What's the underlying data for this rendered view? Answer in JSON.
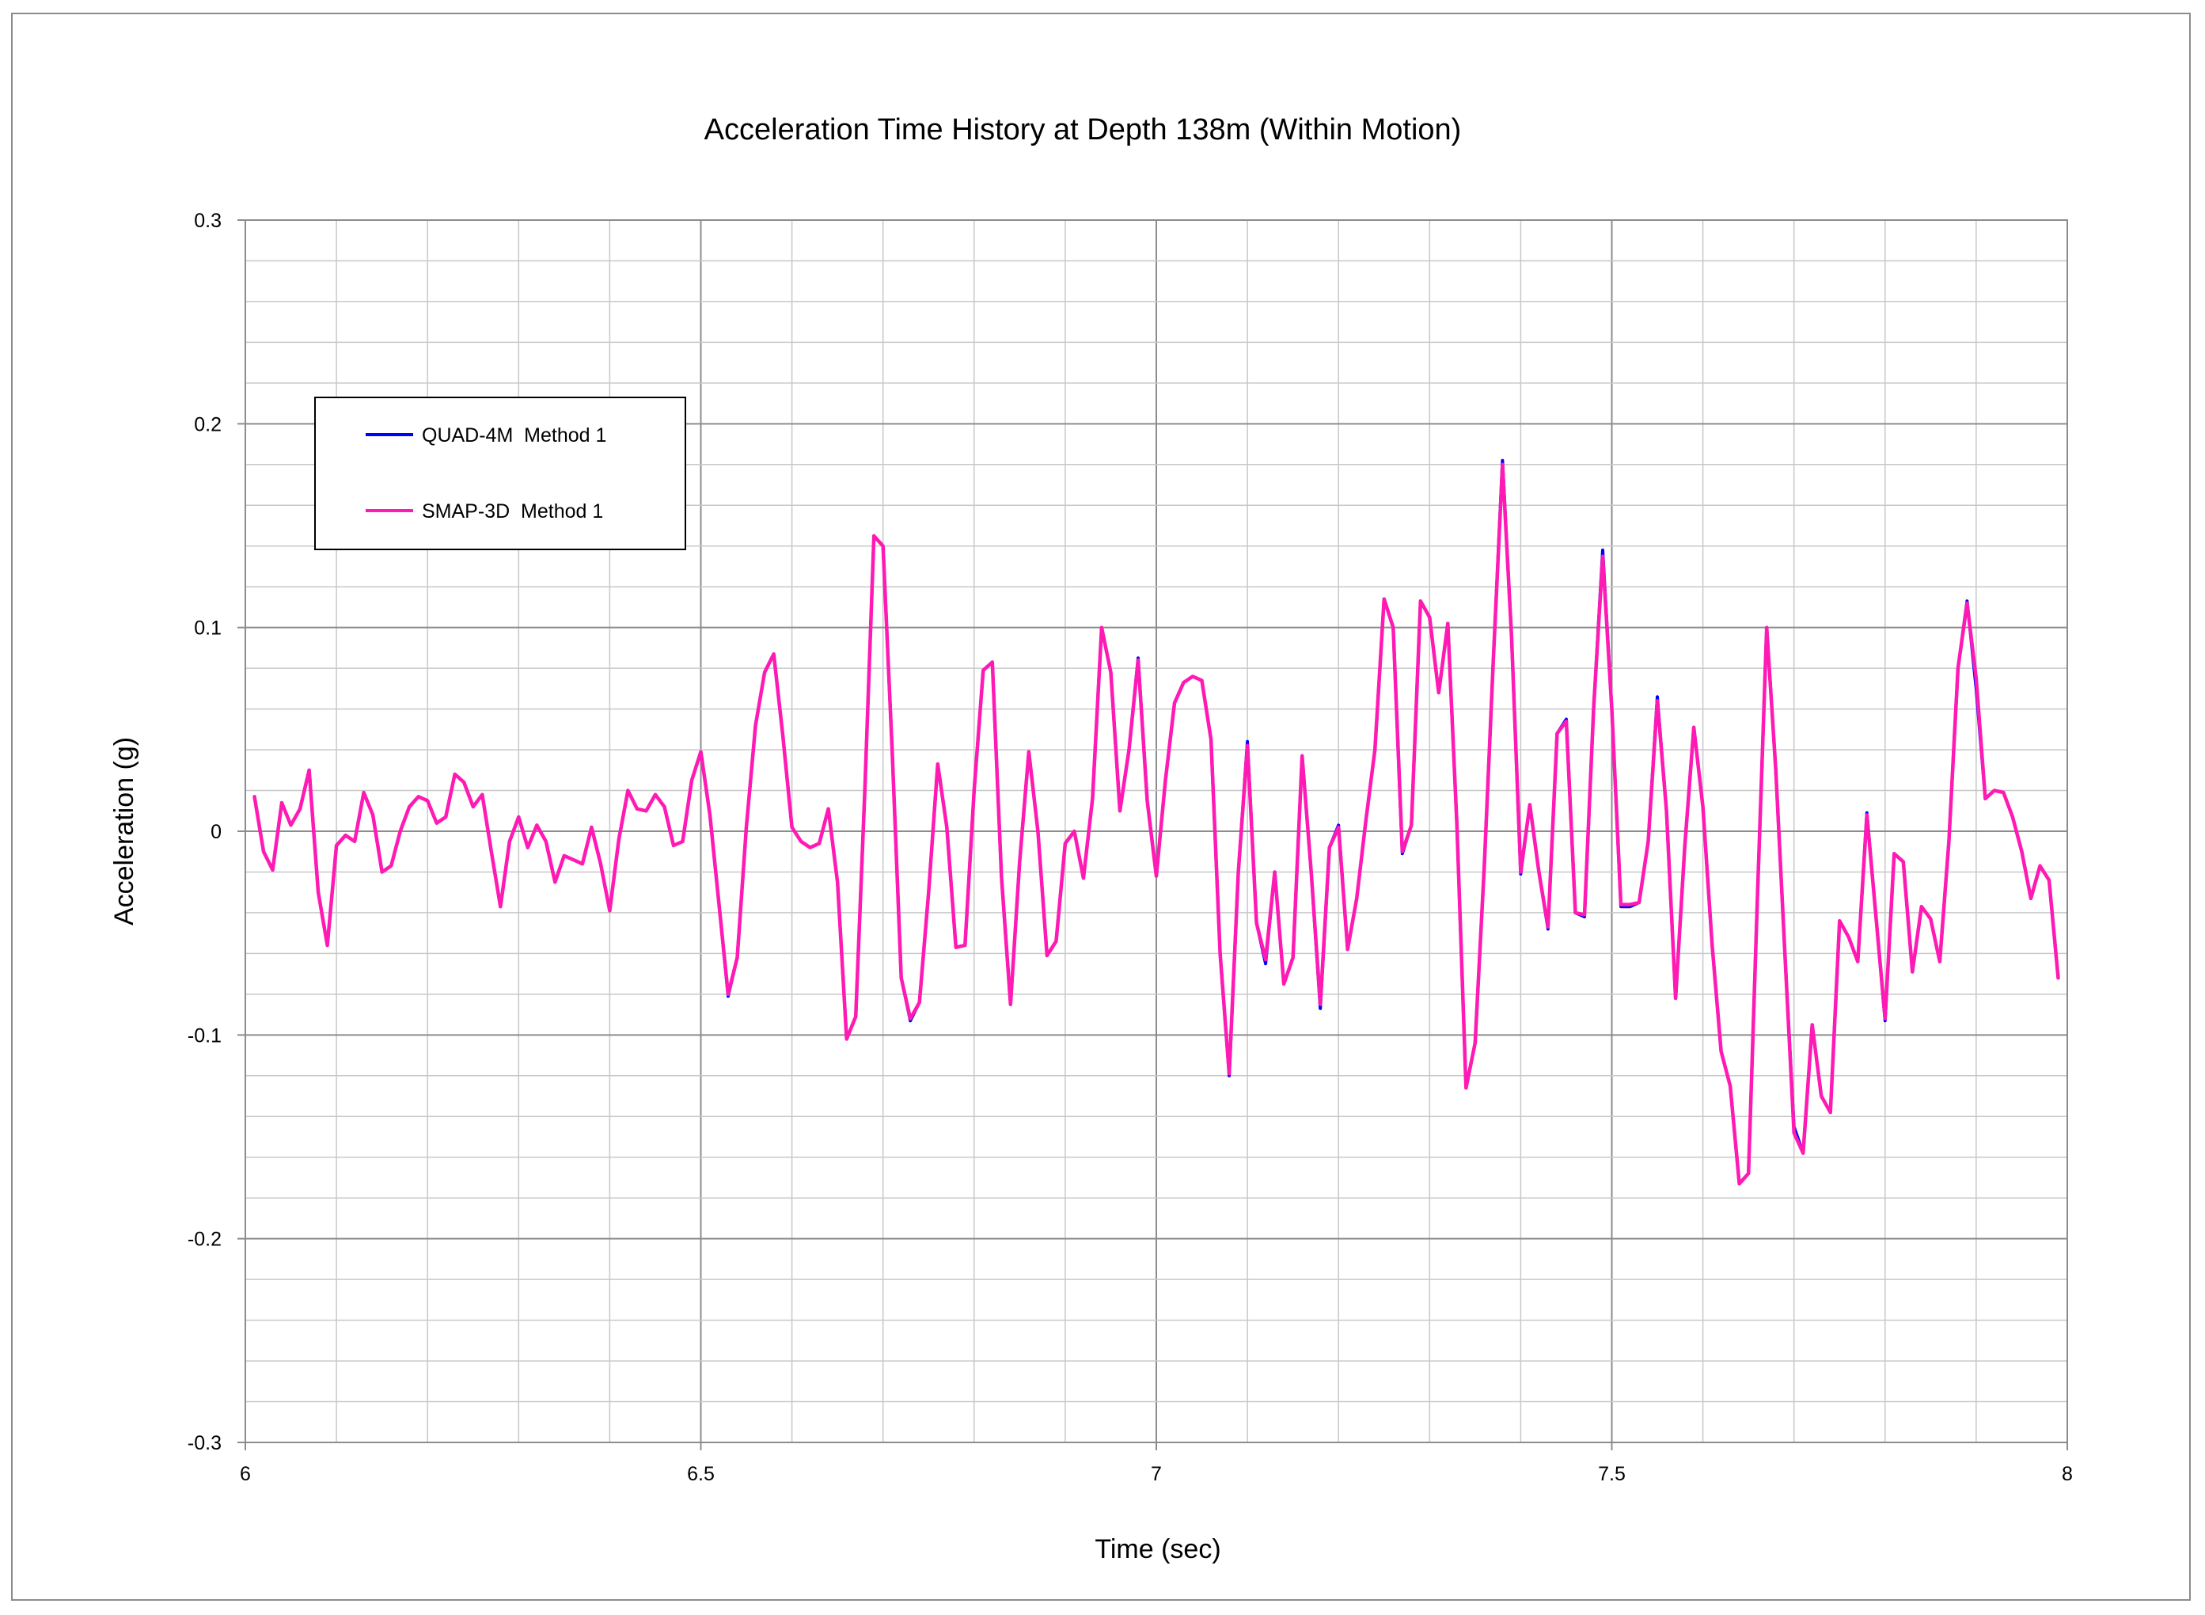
{
  "chart_data": {
    "type": "line",
    "title": "Acceleration Time History  at Depth 138m (Within Motion)",
    "xlabel": "Time (sec)",
    "ylabel": "Acceleration (g)",
    "xlim": [
      6,
      8
    ],
    "ylim": [
      -0.3,
      0.3
    ],
    "xticks": [
      6,
      6.5,
      7,
      7.5,
      8
    ],
    "xtick_labels": [
      "6",
      "6.5",
      "7",
      "7.5",
      "8"
    ],
    "yticks": [
      -0.3,
      -0.2,
      -0.1,
      0,
      0.1,
      0.2,
      0.3
    ],
    "ytick_labels": [
      "-0.3",
      "-0.2",
      "-0.1",
      "0",
      "0.1",
      "0.2",
      "0.3"
    ],
    "grid": true,
    "legend_position": "upper-left",
    "x": [
      6.01,
      6.02,
      6.03,
      6.04,
      6.05,
      6.06,
      6.07,
      6.08,
      6.09,
      6.1,
      6.11,
      6.12,
      6.13,
      6.14,
      6.15,
      6.16,
      6.17,
      6.18,
      6.19,
      6.2,
      6.21,
      6.22,
      6.23,
      6.24,
      6.25,
      6.26,
      6.27,
      6.28,
      6.29,
      6.3,
      6.31,
      6.32,
      6.33,
      6.34,
      6.35,
      6.36,
      6.37,
      6.38,
      6.39,
      6.4,
      6.41,
      6.42,
      6.43,
      6.44,
      6.45,
      6.46,
      6.47,
      6.48,
      6.49,
      6.5,
      6.51,
      6.52,
      6.53,
      6.54,
      6.55,
      6.56,
      6.57,
      6.58,
      6.59,
      6.6,
      6.61,
      6.62,
      6.63,
      6.64,
      6.65,
      6.66,
      6.67,
      6.68,
      6.69,
      6.7,
      6.71,
      6.72,
      6.73,
      6.74,
      6.75,
      6.76,
      6.77,
      6.78,
      6.79,
      6.8,
      6.81,
      6.82,
      6.83,
      6.84,
      6.85,
      6.86,
      6.87,
      6.88,
      6.89,
      6.9,
      6.91,
      6.92,
      6.93,
      6.94,
      6.95,
      6.96,
      6.97,
      6.98,
      6.99,
      7,
      7.01,
      7.02,
      7.03,
      7.04,
      7.05,
      7.06,
      7.07,
      7.08,
      7.09,
      7.1,
      7.11,
      7.12,
      7.13,
      7.14,
      7.15,
      7.16,
      7.17,
      7.18,
      7.19,
      7.2,
      7.21,
      7.22,
      7.23,
      7.24,
      7.25,
      7.26,
      7.27,
      7.28,
      7.29,
      7.3,
      7.31,
      7.32,
      7.33,
      7.34,
      7.35,
      7.36,
      7.37,
      7.38,
      7.39,
      7.4,
      7.41,
      7.42,
      7.43,
      7.44,
      7.45,
      7.46,
      7.47,
      7.48,
      7.49,
      7.5,
      7.51,
      7.52,
      7.53,
      7.54,
      7.55,
      7.56,
      7.57,
      7.58,
      7.59,
      7.6,
      7.61,
      7.62,
      7.63,
      7.64,
      7.65,
      7.66,
      7.67,
      7.68,
      7.69,
      7.7,
      7.71,
      7.72,
      7.73,
      7.74,
      7.75,
      7.76,
      7.77,
      7.78,
      7.79,
      7.8,
      7.81,
      7.82,
      7.83,
      7.84,
      7.85,
      7.86,
      7.87,
      7.88,
      7.89,
      7.9,
      7.91,
      7.92,
      7.93,
      7.94,
      7.95,
      7.96,
      7.97,
      7.98,
      7.99
    ],
    "series": [
      {
        "name": "QUAD-4M  Method 1",
        "color": "#0000ff",
        "values": [
          0.017,
          -0.01,
          -0.019,
          0.014,
          0.003,
          0.011,
          0.03,
          -0.03,
          -0.056,
          -0.007,
          -0.002,
          -0.005,
          0.019,
          0.008,
          -0.02,
          -0.017,
          0,
          0.012,
          0.017,
          0.015,
          0.004,
          0.007,
          0.028,
          0.024,
          0.012,
          0.018,
          -0.01,
          -0.037,
          -0.005,
          0.007,
          -0.008,
          0.003,
          -0.005,
          -0.025,
          -0.012,
          -0.014,
          -0.016,
          0.002,
          -0.016,
          -0.039,
          -0.004,
          0.02,
          0.011,
          0.01,
          0.018,
          0.012,
          -0.007,
          -0.005,
          0.025,
          0.039,
          0.008,
          -0.036,
          -0.081,
          -0.062,
          0.002,
          0.052,
          0.078,
          0.087,
          0.047,
          0.002,
          -0.005,
          -0.008,
          -0.006,
          0.011,
          -0.025,
          -0.102,
          -0.091,
          0.02,
          0.145,
          0.14,
          0.04,
          -0.072,
          -0.093,
          -0.084,
          -0.03,
          0.033,
          0.002,
          -0.057,
          -0.056,
          0.02,
          0.079,
          0.083,
          -0.022,
          -0.085,
          -0.015,
          0.039,
          0,
          -0.061,
          -0.054,
          -0.006,
          0,
          -0.023,
          0.016,
          0.1,
          0.078,
          0.01,
          0.04,
          0.085,
          0.015,
          -0.022,
          0.025,
          0.063,
          0.073,
          0.076,
          0.074,
          0.045,
          -0.06,
          -0.12,
          -0.02,
          0.044,
          -0.045,
          -0.065,
          -0.02,
          -0.075,
          -0.062,
          0.037,
          -0.02,
          -0.087,
          -0.008,
          0.003,
          -0.058,
          -0.033,
          0.005,
          0.04,
          0.114,
          0.1,
          -0.011,
          0.003,
          0.113,
          0.105,
          0.068,
          0.102,
          0.003,
          -0.126,
          -0.104,
          -0.017,
          0.085,
          0.182,
          0.095,
          -0.021,
          0.013,
          -0.02,
          -0.048,
          0.048,
          0.055,
          -0.04,
          -0.042,
          0.06,
          0.138,
          0.06,
          -0.037,
          -0.037,
          -0.035,
          -0.005,
          0.066,
          0.01,
          -0.082,
          -0.008,
          0.051,
          0.012,
          -0.055,
          -0.108,
          -0.125,
          -0.173,
          -0.168,
          -0.03,
          0.1,
          0.03,
          -0.06,
          -0.145,
          -0.158,
          -0.095,
          -0.13,
          -0.138,
          -0.044,
          -0.052,
          -0.064,
          0.009,
          -0.042,
          -0.093,
          -0.011,
          -0.015,
          -0.069,
          -0.037,
          -0.043,
          -0.064,
          -0.005,
          0.08,
          0.113,
          0.07,
          0.016,
          0.02,
          0.019,
          0.007,
          -0.01,
          -0.033,
          -0.017,
          -0.024,
          -0.072
        ]
      },
      {
        "name": "SMAP-3D  Method 1",
        "color": "#ff1ab3",
        "values": [
          0.017,
          -0.01,
          -0.019,
          0.014,
          0.003,
          0.011,
          0.03,
          -0.03,
          -0.056,
          -0.007,
          -0.002,
          -0.005,
          0.019,
          0.008,
          -0.02,
          -0.017,
          0,
          0.012,
          0.017,
          0.015,
          0.004,
          0.007,
          0.028,
          0.024,
          0.012,
          0.018,
          -0.01,
          -0.037,
          -0.005,
          0.007,
          -0.008,
          0.003,
          -0.005,
          -0.025,
          -0.012,
          -0.014,
          -0.016,
          0.002,
          -0.016,
          -0.039,
          -0.004,
          0.02,
          0.011,
          0.01,
          0.018,
          0.012,
          -0.007,
          -0.005,
          0.025,
          0.039,
          0.008,
          -0.036,
          -0.08,
          -0.062,
          0.002,
          0.052,
          0.078,
          0.087,
          0.047,
          0.002,
          -0.005,
          -0.008,
          -0.006,
          0.011,
          -0.025,
          -0.102,
          -0.091,
          0.02,
          0.145,
          0.14,
          0.04,
          -0.072,
          -0.092,
          -0.084,
          -0.03,
          0.033,
          0.002,
          -0.057,
          -0.056,
          0.02,
          0.079,
          0.083,
          -0.022,
          -0.085,
          -0.015,
          0.039,
          0,
          -0.061,
          -0.054,
          -0.006,
          0,
          -0.023,
          0.016,
          0.1,
          0.078,
          0.01,
          0.04,
          0.084,
          0.015,
          -0.022,
          0.025,
          0.063,
          0.073,
          0.076,
          0.074,
          0.045,
          -0.06,
          -0.119,
          -0.02,
          0.042,
          -0.045,
          -0.063,
          -0.02,
          -0.075,
          -0.062,
          0.037,
          -0.02,
          -0.085,
          -0.008,
          0.002,
          -0.058,
          -0.033,
          0.005,
          0.04,
          0.114,
          0.1,
          -0.01,
          0.003,
          0.113,
          0.105,
          0.068,
          0.102,
          0.003,
          -0.126,
          -0.104,
          -0.017,
          0.085,
          0.18,
          0.095,
          -0.02,
          0.013,
          -0.02,
          -0.047,
          0.048,
          0.054,
          -0.04,
          -0.041,
          0.06,
          0.135,
          0.06,
          -0.036,
          -0.036,
          -0.035,
          -0.005,
          0.064,
          0.01,
          -0.082,
          -0.008,
          0.051,
          0.012,
          -0.055,
          -0.108,
          -0.125,
          -0.173,
          -0.168,
          -0.03,
          0.1,
          0.03,
          -0.06,
          -0.148,
          -0.158,
          -0.095,
          -0.13,
          -0.138,
          -0.044,
          -0.052,
          -0.064,
          0.008,
          -0.042,
          -0.092,
          -0.011,
          -0.015,
          -0.069,
          -0.037,
          -0.043,
          -0.064,
          -0.005,
          0.08,
          0.112,
          0.075,
          0.016,
          0.02,
          0.019,
          0.007,
          -0.01,
          -0.033,
          -0.017,
          -0.024,
          -0.072
        ]
      }
    ]
  }
}
